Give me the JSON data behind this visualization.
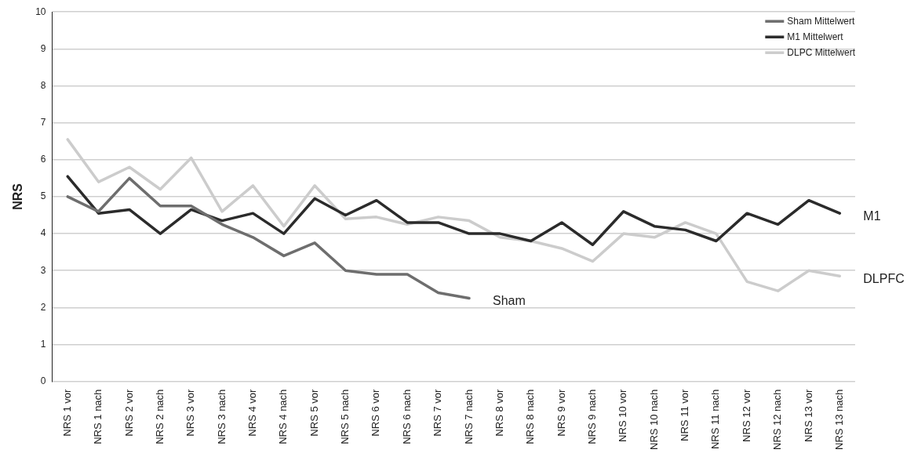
{
  "chart_data": {
    "type": "line",
    "ylabel": "NRS",
    "categories": [
      "NRS 1 vor",
      "NRS 1 nach",
      "NRS 2 vor",
      "NRS 2 nach",
      "NRS 3 vor",
      "NRS 3 nach",
      "NRS 4 vor",
      "NRS 4 nach",
      "NRS 5 vor",
      "NRS 5 nach",
      "NRS 6 vor",
      "NRS 6 nach",
      "NRS 7 vor",
      "NRS 7 nach",
      "NRS 8 vor",
      "NRS 8 nach",
      "NRS 9 vor",
      "NRS 9 nach",
      "NRS 10 vor",
      "NRS 10 nach",
      "NRS 11 vor",
      "NRS 11 nach",
      "NRS 12 vor",
      "NRS 12 nach",
      "NRS 13 vor",
      "NRS 13 nach"
    ],
    "series": [
      {
        "name": "Sham Mittelwert",
        "color": "#6e6e6e",
        "values": [
          5.0,
          4.6,
          5.5,
          4.75,
          4.75,
          4.25,
          3.9,
          3.4,
          3.75,
          3.0,
          2.9,
          2.9,
          2.4,
          2.25,
          null,
          null,
          null,
          null,
          null,
          null,
          null,
          null,
          null,
          null,
          null,
          null
        ]
      },
      {
        "name": "M1 Mittelwert",
        "color": "#2b2b2b",
        "values": [
          5.55,
          4.55,
          4.65,
          4.0,
          4.65,
          4.35,
          4.55,
          4.0,
          4.95,
          4.5,
          4.9,
          4.3,
          4.3,
          4.0,
          4.0,
          3.8,
          4.3,
          3.7,
          4.6,
          4.2,
          4.1,
          3.8,
          4.55,
          4.25,
          4.9,
          4.55
        ]
      },
      {
        "name": "DLPC Mittelwert",
        "color": "#cccccc",
        "values": [
          6.55,
          5.4,
          5.8,
          5.2,
          6.05,
          4.6,
          5.3,
          4.2,
          5.3,
          4.4,
          4.45,
          4.25,
          4.45,
          4.35,
          3.9,
          3.8,
          3.6,
          3.25,
          4.0,
          3.9,
          4.3,
          4.0,
          2.7,
          2.45,
          3.0,
          2.85
        ]
      }
    ],
    "ylim": [
      0,
      10
    ],
    "yticks": [
      0,
      1,
      2,
      3,
      4,
      5,
      6,
      7,
      8,
      9,
      10
    ],
    "grid": "y",
    "legend": "top right",
    "marker": "none",
    "line_style": "solid",
    "annotations": [
      {
        "text": "Sham",
        "x": "NRS 7 nach",
        "y": 2.25
      },
      {
        "text": "M1",
        "x": "NRS 13 nach",
        "y": 4.55
      },
      {
        "text": "DLPFC",
        "x": "NRS 13 nach",
        "y": 2.85
      }
    ]
  }
}
